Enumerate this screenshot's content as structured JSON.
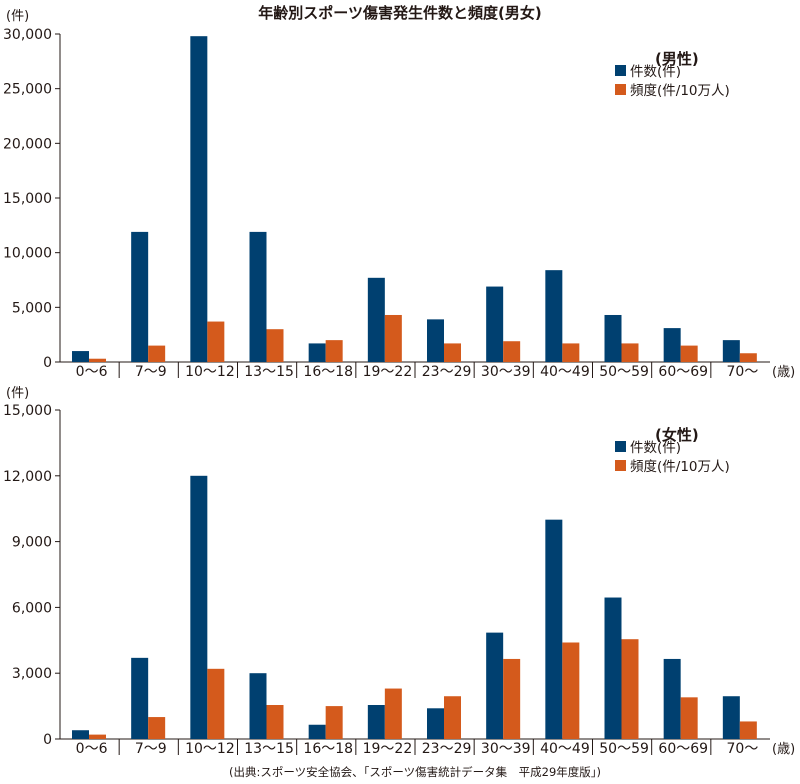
{
  "title": "年齢別スポーツ傷害発生件数と頻度(男女)",
  "source": "(出典:スポーツ安全協会、「スポーツ傷害統計データ集　平成29年度版」)",
  "colors": {
    "count": "#004070",
    "freq": "#d45a1c",
    "axis": "#231815"
  },
  "chart_data": [
    {
      "type": "bar",
      "name": "male",
      "legend_title": "(男性)",
      "y_unit_label": "(件)",
      "x_unit_label": "(歳)",
      "categories": [
        "0〜6",
        "7〜9",
        "10〜12",
        "13〜15",
        "16〜18",
        "19〜22",
        "23〜29",
        "30〜39",
        "40〜49",
        "50〜59",
        "60〜69",
        "70〜"
      ],
      "ylim": [
        0,
        30000
      ],
      "yticks": [
        0,
        5000,
        10000,
        15000,
        20000,
        25000,
        30000
      ],
      "ytick_labels": [
        "0",
        "5,000",
        "10,000",
        "15,000",
        "20,000",
        "25,000",
        "30,000"
      ],
      "series": [
        {
          "name": "件数(件)",
          "values": [
            1000,
            11900,
            29800,
            11900,
            1700,
            7700,
            3900,
            6900,
            8400,
            4300,
            3100,
            2000
          ]
        },
        {
          "name": "頻度(件/10万人)",
          "values": [
            300,
            1500,
            3700,
            3000,
            2000,
            4300,
            1700,
            1900,
            1700,
            1700,
            1500,
            800
          ]
        }
      ],
      "legend": "top-right"
    },
    {
      "type": "bar",
      "name": "female",
      "legend_title": "(女性)",
      "y_unit_label": "(件)",
      "x_unit_label": "(歳)",
      "categories": [
        "0〜6",
        "7〜9",
        "10〜12",
        "13〜15",
        "16〜18",
        "19〜22",
        "23〜29",
        "30〜39",
        "40〜49",
        "50〜59",
        "60〜69",
        "70〜"
      ],
      "ylim": [
        0,
        15000
      ],
      "yticks": [
        0,
        3000,
        6000,
        9000,
        12000,
        15000
      ],
      "ytick_labels": [
        "0",
        "3,000",
        "6,000",
        "9,000",
        "12,000",
        "15,000"
      ],
      "series": [
        {
          "name": "件数(件)",
          "values": [
            400,
            3700,
            12000,
            3000,
            650,
            1550,
            1400,
            4850,
            10000,
            6450,
            3650,
            1950
          ]
        },
        {
          "name": "頻度(件/10万人)",
          "values": [
            200,
            1000,
            3200,
            1550,
            1500,
            2300,
            1950,
            3650,
            4400,
            4550,
            1900,
            800
          ]
        }
      ],
      "legend": "top-right"
    }
  ]
}
